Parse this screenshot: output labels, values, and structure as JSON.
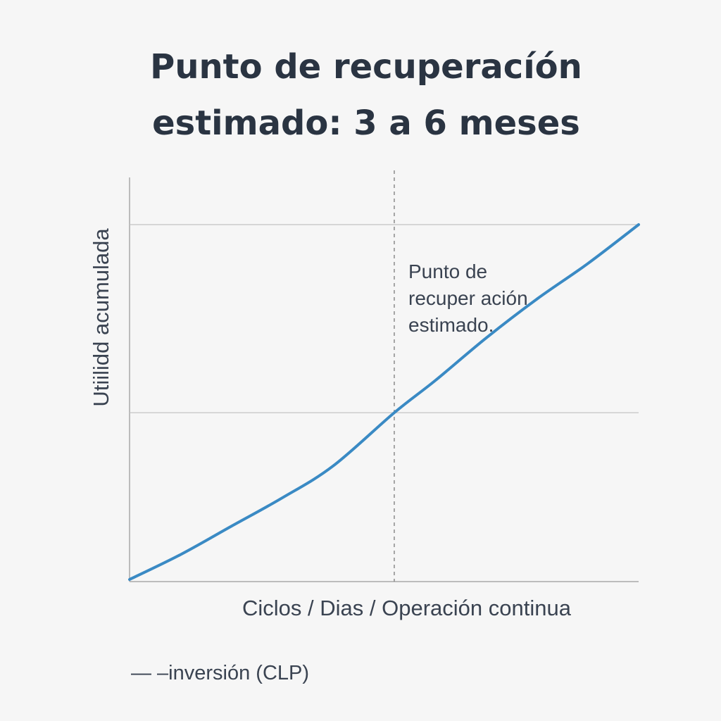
{
  "title_lines": [
    "Punto de recuperacíón",
    "estimado: 3 a 6 meses"
  ],
  "annotation_lines": [
    "Punto de",
    "recuper ación",
    "estimado."
  ],
  "legend": "— –inversión (CLP)",
  "colors": {
    "background": "#f6f6f6",
    "line": "#3a8ac4",
    "grid": "#c4c4c4",
    "axis": "#a8a8a8",
    "text": "#2b3544"
  },
  "chart_data": {
    "type": "line",
    "title": "Punto de recuperacíón estimado: 3 a 6 meses",
    "xlabel": "Ciclos / Dias / Operación continua",
    "ylabel": "Utiilidd acumulada",
    "xlim": [
      0,
      1
    ],
    "ylim": [
      0,
      1
    ],
    "grid": {
      "horizontal": [
        0.47,
        1.0
      ]
    },
    "breakeven_x": 0.52,
    "annotation": "Punto de recuper ación estimado.",
    "legend": "— –inversión (CLP)",
    "legend_position": "bottom-left",
    "series": [
      {
        "values_x": [
          0.0,
          0.1,
          0.2,
          0.3,
          0.4,
          0.52,
          0.6,
          0.7,
          0.8,
          0.9,
          1.0
        ],
        "values_y": [
          0.0,
          0.07,
          0.15,
          0.23,
          0.32,
          0.47,
          0.56,
          0.68,
          0.79,
          0.89,
          1.0
        ]
      }
    ]
  }
}
